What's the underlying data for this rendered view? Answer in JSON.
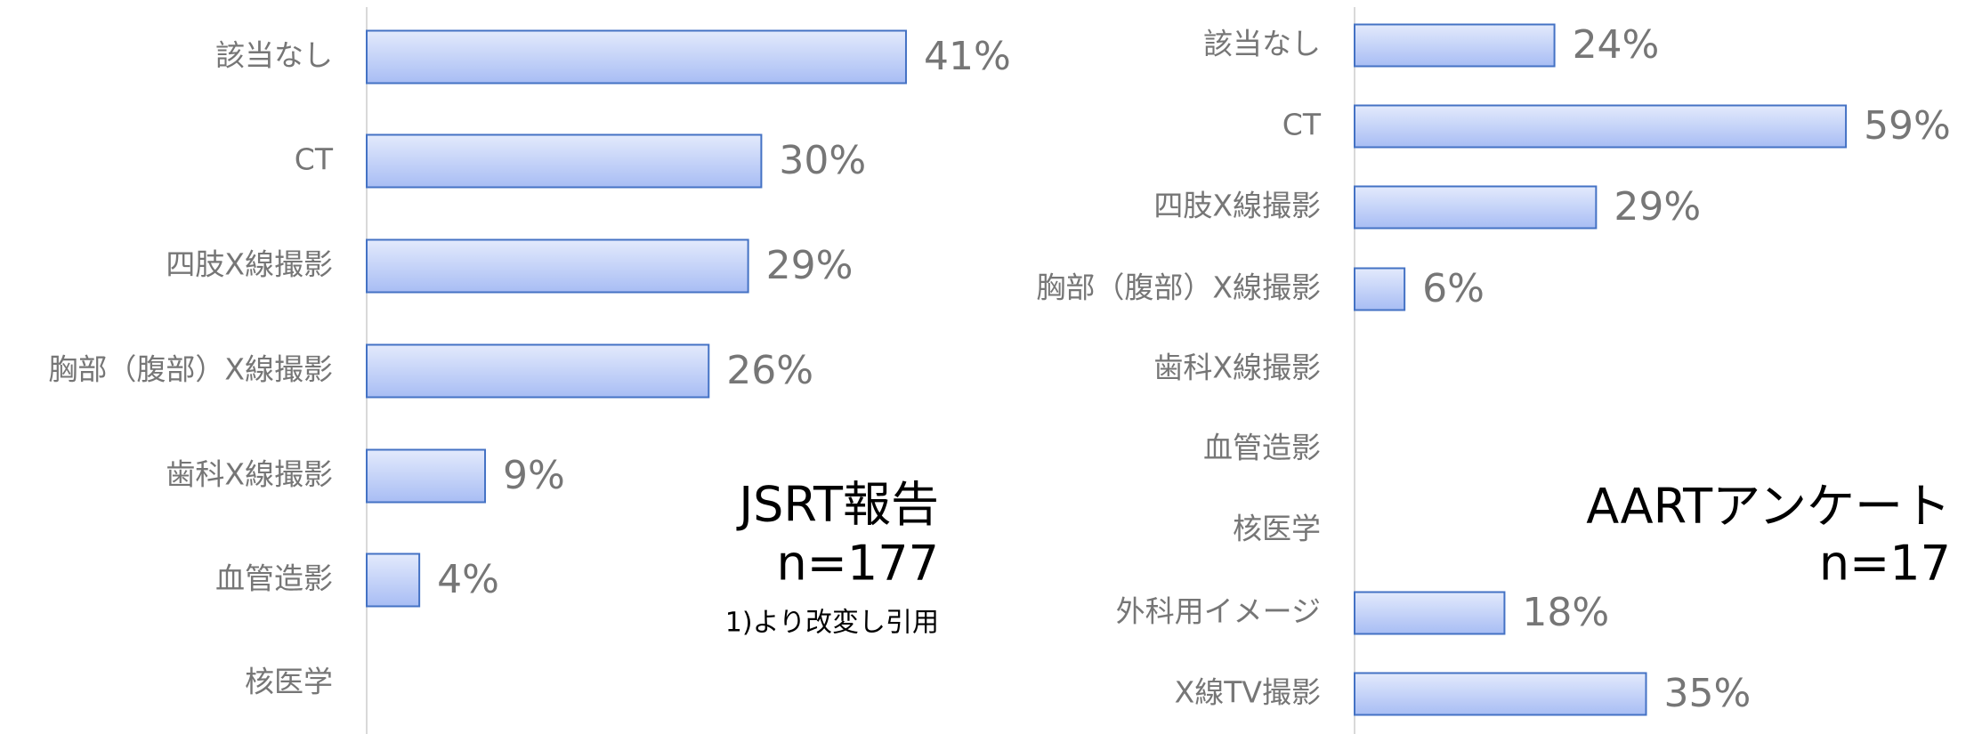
{
  "chart_data": [
    {
      "type": "hbar",
      "categories": [
        "該当なし",
        "CT",
        "四肢X線撮影",
        "胸部（腹部）X線撮影",
        "歯科X線撮影",
        "血管造影",
        "核医学"
      ],
      "values": [
        41,
        30,
        29,
        26,
        9,
        4,
        null
      ],
      "value_labels": [
        "41%",
        "30%",
        "29%",
        "26%",
        "9%",
        "4%",
        null
      ],
      "xlim": [
        0,
        50
      ],
      "color": "#4472c4",
      "annotations": [
        "JSRT報告",
        "n=177",
        "1)より改変し引用"
      ]
    },
    {
      "type": "hbar",
      "categories": [
        "該当なし",
        "CT",
        "四肢X線撮影",
        "胸部（腹部）X線撮影",
        "歯科X線撮影",
        "血管造影",
        "核医学",
        "外科用イメージ",
        "X線TV撮影"
      ],
      "values": [
        24,
        59,
        29,
        6,
        null,
        null,
        null,
        18,
        35
      ],
      "value_labels": [
        "24%",
        "59%",
        "29%",
        "6%",
        null,
        null,
        null,
        "18%",
        "35%"
      ],
      "xlim": [
        0,
        70
      ],
      "color": "#4472c4",
      "annotations": [
        "AARTアンケート",
        "n=17"
      ]
    }
  ]
}
